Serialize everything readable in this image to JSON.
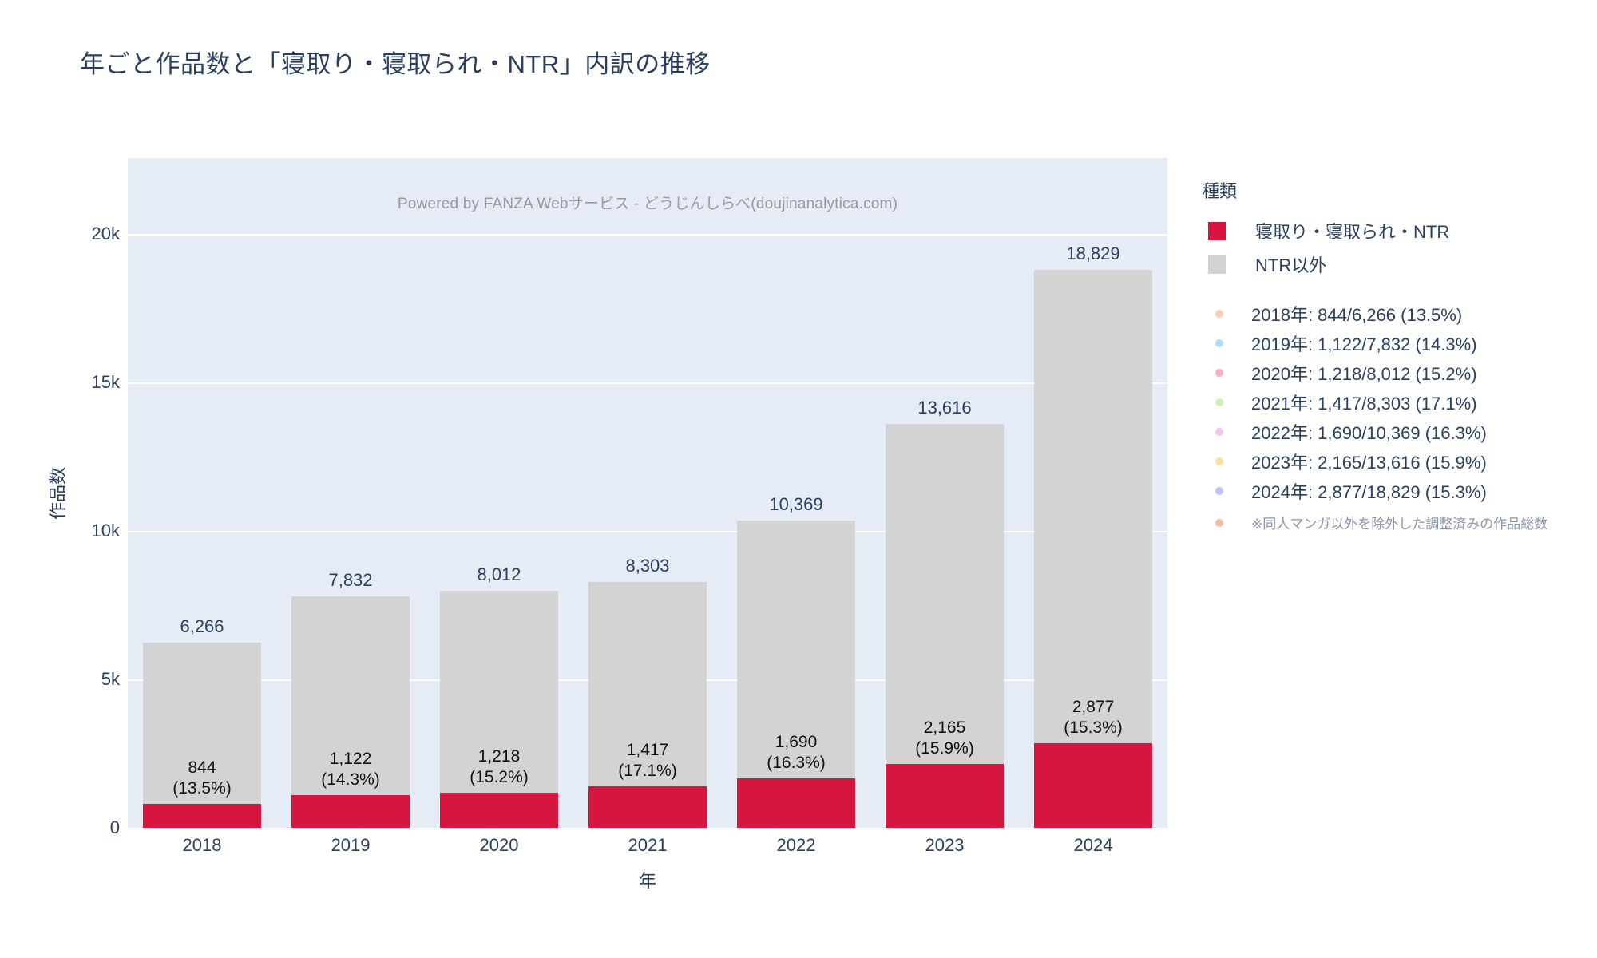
{
  "title": "年ごと作品数と「寝取り・寝取られ・NTR」内訳の推移",
  "watermark": "Powered by FANZA Webサービス - どうじんしらべ(doujinanalytica.com)",
  "xaxis": {
    "title": "年",
    "ticks": [
      "2018",
      "2019",
      "2020",
      "2021",
      "2022",
      "2023",
      "2024"
    ]
  },
  "yaxis": {
    "title": "作品数",
    "ticks": [
      "0",
      "5k",
      "10k",
      "15k",
      "20k"
    ],
    "tick_values": [
      0,
      5000,
      10000,
      15000,
      20000
    ]
  },
  "legend": {
    "title": "種類",
    "items": [
      {
        "label": "寝取り・寝取られ・NTR",
        "color": "#d6163f"
      },
      {
        "label": "NTR以外",
        "color": "#d3d3d3"
      }
    ]
  },
  "annotations": [
    {
      "text": "2018年: 844/6,266 (13.5%)",
      "dot": "#f9cfae"
    },
    {
      "text": "2019年: 1,122/7,832 (14.3%)",
      "dot": "#aee0f7"
    },
    {
      "text": "2020年: 1,218/8,012 (15.2%)",
      "dot": "#f7afc0"
    },
    {
      "text": "2021年: 1,417/8,303 (17.1%)",
      "dot": "#cdefb2"
    },
    {
      "text": "2022年: 1,690/10,369 (16.3%)",
      "dot": "#f3c6f1"
    },
    {
      "text": "2023年: 2,165/13,616 (15.9%)",
      "dot": "#fbe0a4"
    },
    {
      "text": "2024年: 2,877/18,829 (15.3%)",
      "dot": "#bcc3fa"
    }
  ],
  "note": {
    "text": "※同人マンガ以外を除外した調整済みの作品総数",
    "dot": "#f7bba4"
  },
  "chart_data": {
    "type": "bar",
    "stacked": true,
    "categories": [
      "2018",
      "2019",
      "2020",
      "2021",
      "2022",
      "2023",
      "2024"
    ],
    "series": [
      {
        "name": "寝取り・寝取られ・NTR",
        "color": "#d6163f",
        "values": [
          844,
          1122,
          1218,
          1417,
          1690,
          2165,
          2877
        ]
      },
      {
        "name": "NTR以外",
        "color": "#d3d3d3",
        "values": [
          5422,
          6710,
          6794,
          6886,
          8679,
          11451,
          15952
        ]
      }
    ],
    "totals": [
      6266,
      7832,
      8012,
      8303,
      10369,
      13616,
      18829
    ],
    "total_labels": [
      "6,266",
      "7,832",
      "8,012",
      "8,303",
      "10,369",
      "13,616",
      "18,829"
    ],
    "segment_labels": [
      [
        "844",
        "(13.5%)"
      ],
      [
        "1,122",
        "(14.3%)"
      ],
      [
        "1,218",
        "(15.2%)"
      ],
      [
        "1,417",
        "(17.1%)"
      ],
      [
        "1,690",
        "(16.3%)"
      ],
      [
        "2,165",
        "(15.9%)"
      ],
      [
        "2,877",
        "(15.3%)"
      ]
    ],
    "percentages": [
      13.5,
      14.3,
      15.2,
      17.1,
      16.3,
      15.9,
      15.3
    ],
    "title": "年ごと作品数と「寝取り・寝取られ・NTR」内訳の推移",
    "xlabel": "年",
    "ylabel": "作品数",
    "ylim": [
      0,
      22580
    ],
    "grid": true,
    "legend_position": "right",
    "plot_bgcolor": "#e5ecf6",
    "text_color": "#2a3f5f"
  }
}
